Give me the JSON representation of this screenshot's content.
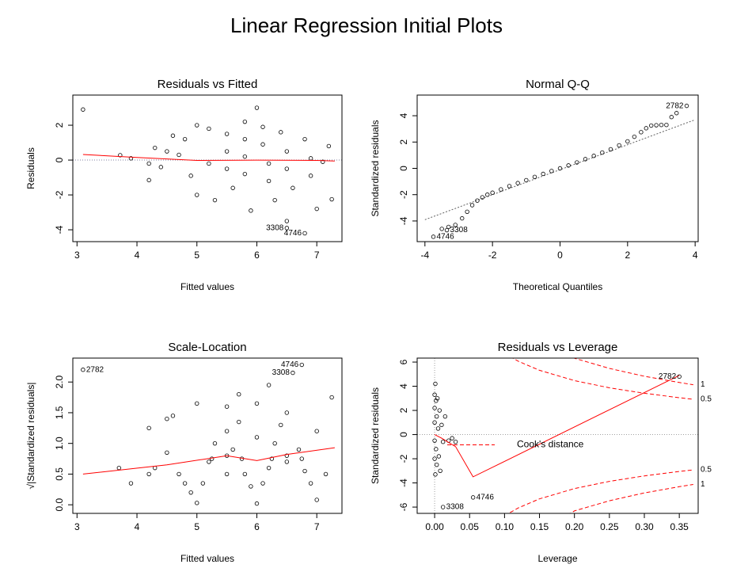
{
  "title": "Linear Regression Initial Plots",
  "chart_data": [
    {
      "type": "scatter",
      "title": "Residuals vs Fitted",
      "xlabel": "Fitted values",
      "ylabel": "Residuals",
      "xlim": [
        2.93,
        7.42
      ],
      "ylim": [
        -4.68,
        3.73
      ],
      "xticks": [
        3,
        4,
        5,
        6,
        7
      ],
      "yticks": [
        -4,
        -2,
        0,
        2
      ],
      "x": [
        3.1,
        3.72,
        3.9,
        4.2,
        4.2,
        4.3,
        4.4,
        4.5,
        4.6,
        4.7,
        4.8,
        4.9,
        5.0,
        5.0,
        5.2,
        5.2,
        5.3,
        5.5,
        5.5,
        5.5,
        5.6,
        5.8,
        5.8,
        5.8,
        5.8,
        5.9,
        6.0,
        6.1,
        6.1,
        6.2,
        6.2,
        6.3,
        6.4,
        6.5,
        6.5,
        6.5,
        6.6,
        6.8,
        6.9,
        6.9,
        7.0,
        7.1,
        7.2,
        7.25
      ],
      "y": [
        2.9,
        0.28,
        0.1,
        -0.2,
        -1.15,
        0.7,
        -0.4,
        0.5,
        1.4,
        0.3,
        1.2,
        -0.9,
        2.0,
        -2.0,
        1.8,
        -0.2,
        -2.3,
        1.5,
        0.5,
        -0.5,
        -1.6,
        2.2,
        1.2,
        0.2,
        -0.8,
        -2.9,
        3.0,
        1.9,
        0.9,
        -0.2,
        -1.2,
        -2.3,
        1.6,
        0.5,
        -0.5,
        -3.5,
        -1.6,
        1.2,
        0.1,
        -0.9,
        -2.8,
        -0.1,
        0.8,
        -2.25
      ],
      "outliers": {
        "x": [
          6.5,
          6.8
        ],
        "y": [
          -3.9,
          -4.2
        ],
        "labels": [
          "3308",
          "4746"
        ]
      },
      "line_x": [
        3.1,
        4,
        5,
        6,
        7,
        7.3
      ],
      "line_y": [
        0.32,
        0.15,
        -0.02,
        0,
        -0.02,
        -0.05
      ],
      "hline": 0,
      "point_color": "#000000",
      "line_color": "#ff0000",
      "ref_color": "#8080a0"
    },
    {
      "type": "scatter",
      "title": "Normal Q-Q",
      "xlabel": "Theoretical Quantiles",
      "ylabel": "Standardized residuals",
      "xlim": [
        -4.23,
        4.09
      ],
      "ylim": [
        -5.57,
        5.57
      ],
      "xticks": [
        -4,
        -2,
        0,
        2,
        4
      ],
      "yticks": [
        -4,
        -2,
        0,
        2,
        4
      ],
      "x": [
        -3.5,
        -3.3,
        -3.1,
        -2.9,
        -2.75,
        -2.6,
        -2.45,
        -2.3,
        -2.15,
        -2,
        -1.75,
        -1.5,
        -1.25,
        -1,
        -0.75,
        -0.5,
        -0.25,
        0,
        0.25,
        0.5,
        0.75,
        1,
        1.25,
        1.5,
        1.75,
        2,
        2.2,
        2.4,
        2.55,
        2.7,
        2.85,
        3.0,
        3.15,
        3.3,
        3.45
      ],
      "y": [
        -4.6,
        -4.45,
        -4.3,
        -3.8,
        -3.3,
        -2.8,
        -2.45,
        -2.2,
        -2.0,
        -1.85,
        -1.6,
        -1.35,
        -1.12,
        -0.9,
        -0.65,
        -0.42,
        -0.2,
        0,
        0.22,
        0.45,
        0.7,
        0.95,
        1.2,
        1.45,
        1.75,
        2.05,
        2.4,
        2.75,
        3.05,
        3.25,
        3.28,
        3.3,
        3.3,
        3.9,
        4.2
      ],
      "outliers": {
        "x": [
          -3.75,
          -3.35,
          3.75
        ],
        "y": [
          -5.2,
          -4.7,
          4.75
        ],
        "labels": [
          "4746",
          "3308",
          "2782"
        ]
      },
      "ref_line_x": [
        -4,
        4
      ],
      "ref_line_y": [
        -3.9,
        3.7
      ],
      "point_color": "#000000",
      "ref_color": "#606060"
    },
    {
      "type": "scatter",
      "title": "Scale-Location",
      "xlabel": "Fitted values",
      "ylabel": "√|Standardized residuals|",
      "xlim": [
        2.93,
        7.42
      ],
      "ylim": [
        -0.14,
        2.39
      ],
      "xticks": [
        3,
        4,
        5,
        6,
        7
      ],
      "yticks": [
        {
          "value": 0,
          "label": "0.0"
        },
        0.5,
        {
          "value": 1,
          "label": "1.0"
        },
        1.5,
        {
          "value": 2,
          "label": "2.0"
        }
      ],
      "x": [
        3.7,
        3.9,
        4.2,
        4.2,
        4.3,
        4.5,
        4.6,
        4.7,
        4.8,
        4.9,
        5.0,
        5.0,
        5.1,
        5.2,
        5.3,
        5.5,
        5.5,
        5.6,
        5.7,
        5.8,
        5.9,
        6.0,
        6.0,
        6.1,
        6.2,
        6.3,
        6.4,
        6.5,
        6.5,
        6.7,
        6.8,
        6.9,
        7.0,
        7.0,
        7.15,
        7.25,
        5.7,
        6.2,
        5.5,
        4.5,
        6.0,
        5.5,
        6.5,
        5.25,
        5.75,
        6.25,
        6.75
      ],
      "y": [
        0.6,
        0.35,
        1.25,
        0.5,
        0.6,
        0.85,
        1.45,
        0.5,
        0.35,
        0.2,
        0.03,
        1.65,
        0.35,
        0.7,
        1.0,
        1.2,
        0.5,
        0.9,
        1.35,
        0.5,
        0.3,
        0.02,
        1.65,
        0.35,
        0.6,
        1.0,
        1.3,
        1.5,
        0.7,
        0.9,
        0.55,
        0.35,
        0.08,
        1.2,
        0.5,
        1.75,
        1.8,
        1.95,
        1.6,
        1.4,
        1.1,
        0.8,
        0.8,
        0.75,
        0.75,
        0.75,
        0.75
      ],
      "outliers": {
        "x": [
          3.1,
          6.6,
          6.75
        ],
        "y": [
          2.2,
          2.15,
          2.28
        ],
        "labels": [
          "2782",
          "3308",
          "4746"
        ]
      },
      "line_x": [
        3.1,
        4.5,
        5.5,
        6.0,
        6.5,
        7.3
      ],
      "line_y": [
        0.5,
        0.65,
        0.8,
        0.72,
        0.82,
        0.93
      ],
      "point_color": "#000000",
      "line_color": "#ff0000"
    },
    {
      "type": "scatter",
      "title": "Residuals vs Leverage",
      "xlabel": "Leverage",
      "ylabel": "Standardized residuals",
      "xlim": [
        -0.025,
        0.377
      ],
      "ylim": [
        -6.52,
        6.33
      ],
      "xticks": [
        {
          "value": 0,
          "label": "0.00"
        },
        0.05,
        {
          "value": 0.1,
          "label": "0.10"
        },
        0.15,
        {
          "value": 0.2,
          "label": "0.20"
        },
        0.25,
        {
          "value": 0.3,
          "label": "0.30"
        },
        0.35
      ],
      "yticks": [
        -6,
        -4,
        -2,
        0,
        2,
        4,
        6
      ],
      "x": [
        0,
        0,
        0,
        0,
        0,
        0.001,
        0.001,
        0.002,
        0.002,
        0.003,
        0.003,
        0.004,
        0.005,
        0.006,
        0.007,
        0.008,
        0.01,
        0.012,
        0.015,
        0.02,
        0.025,
        0.03
      ],
      "y": [
        3.3,
        2.2,
        1.0,
        -0.5,
        -2.0,
        4.2,
        -3.3,
        2.8,
        -1.2,
        1.5,
        -2.5,
        3.0,
        0.5,
        -1.8,
        2.0,
        -3.0,
        0.8,
        -0.6,
        1.5,
        -0.5,
        -0.3,
        -0.6
      ],
      "outliers": {
        "x": [
          0.012,
          0.055,
          0.35
        ],
        "y": [
          -6.0,
          -5.2,
          4.8
        ],
        "labels": [
          "3308",
          "4746",
          "2782"
        ]
      },
      "line_x": [
        0,
        0.01,
        0.03,
        0.055,
        0.35
      ],
      "line_y": [
        0,
        -0.3,
        -1.0,
        -3.5,
        4.9
      ],
      "hline": 0,
      "vline": 0,
      "contours": [
        {
          "label": "1",
          "x": [
            0.19,
            0.2,
            0.25,
            0.3,
            0.35,
            0.37
          ],
          "upper": [
            6.66,
            6.32,
            5.48,
            4.83,
            4.31,
            4.13
          ],
          "lower": [
            -6.66,
            -6.32,
            -5.48,
            -4.83,
            -4.31,
            -4.13
          ]
        },
        {
          "label": "0.5",
          "x": [
            0.1,
            0.12,
            0.15,
            0.2,
            0.25,
            0.3,
            0.35,
            0.37
          ],
          "upper": [
            6.71,
            6.06,
            5.32,
            4.47,
            3.87,
            3.42,
            3.05,
            2.92
          ],
          "lower": [
            -6.71,
            -6.06,
            -5.32,
            -4.47,
            -3.87,
            -3.42,
            -3.05,
            -2.92
          ]
        }
      ],
      "legend_label": "Cook's distance",
      "point_color": "#000000",
      "line_color": "#ff0000",
      "ref_color": "#a0a0a0"
    }
  ]
}
